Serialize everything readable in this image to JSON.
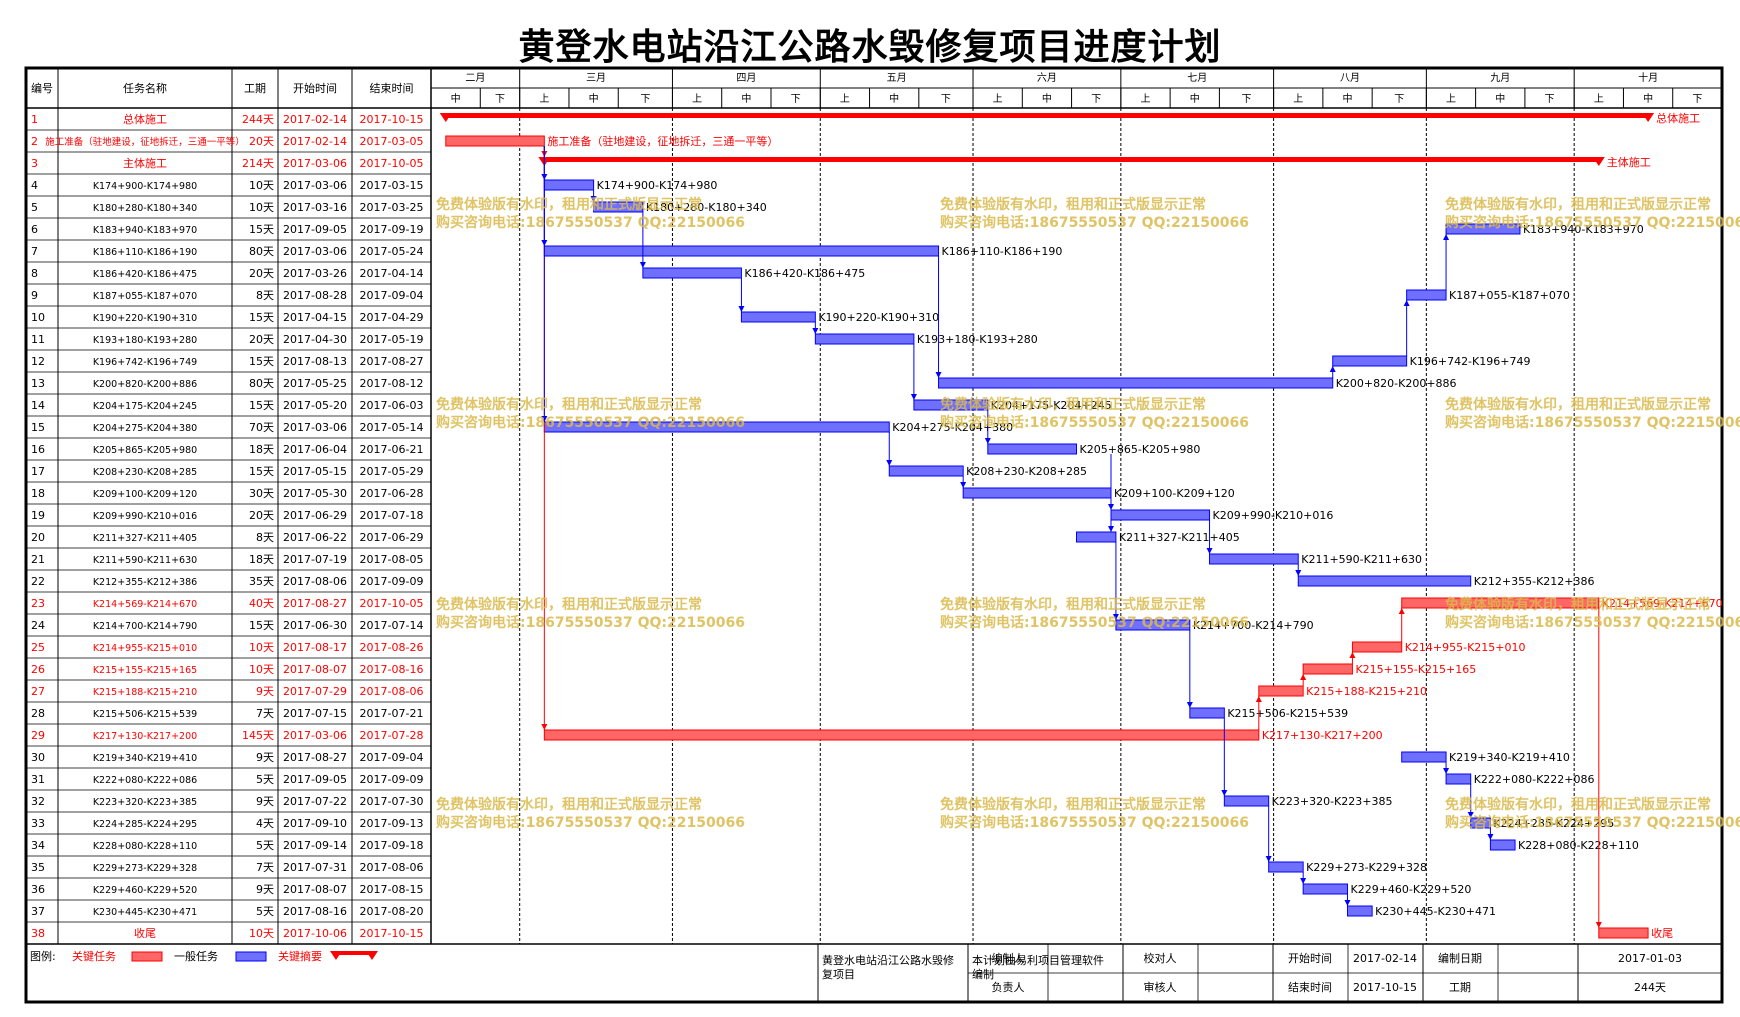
{
  "title": "黄登水电站沿江公路水毁修复项目进度计划",
  "headers": {
    "id": "编号",
    "name": "任务名称",
    "dur": "工期",
    "start": "开始时间",
    "end": "结束时间"
  },
  "months": [
    "二月",
    "三月",
    "四月",
    "五月",
    "六月",
    "七月",
    "八月",
    "九月",
    "十月"
  ],
  "periods": [
    "中",
    "下",
    "上",
    "中",
    "下",
    "上",
    "中",
    "下",
    "上",
    "中",
    "下",
    "上",
    "中",
    "下",
    "上",
    "中",
    "下",
    "上",
    "中",
    "下",
    "上",
    "中",
    "下",
    "上",
    "中",
    "下"
  ],
  "colors": {
    "critical": "#ff0000",
    "normal": "#0000ff",
    "critical_bar": "#ff6666",
    "normal_bar": "#7070ff",
    "watermark": "#d9b84a"
  },
  "watermark": {
    "line1": "免费体验版有水印，租用和正式版显示正常",
    "line2": "购买咨询电话:18675550537 QQ:22150066"
  },
  "chart_data": {
    "type": "gantt",
    "timeline_start": "2017-02-11",
    "timeline_end": "2017-10-31",
    "tasks": [
      {
        "id": "1",
        "name": "总体施工",
        "duration": "244天",
        "start": "2017-02-14",
        "end": "2017-10-15",
        "kind": "summary",
        "critical": true,
        "label": "总体施工"
      },
      {
        "id": "2",
        "name": "施工准备（驻地建设，征地拆迁，三通一平等）",
        "duration": "20天",
        "start": "2017-02-14",
        "end": "2017-03-05",
        "kind": "task",
        "critical": true,
        "label": "施工准备（驻地建设，征地拆迁，三通一平等）"
      },
      {
        "id": "3",
        "name": "主体施工",
        "duration": "214天",
        "start": "2017-03-06",
        "end": "2017-10-05",
        "kind": "summary",
        "critical": true,
        "label": "主体施工"
      },
      {
        "id": "4",
        "name": "K174+900-K174+980",
        "duration": "10天",
        "start": "2017-03-06",
        "end": "2017-03-15",
        "kind": "task",
        "critical": false,
        "label": "K174+900-K174+980"
      },
      {
        "id": "5",
        "name": "K180+280-K180+340",
        "duration": "10天",
        "start": "2017-03-16",
        "end": "2017-03-25",
        "kind": "task",
        "critical": false,
        "label": "K180+280-K180+340"
      },
      {
        "id": "6",
        "name": "K183+940-K183+970",
        "duration": "15天",
        "start": "2017-09-05",
        "end": "2017-09-19",
        "kind": "task",
        "critical": false,
        "label": "K183+940-K183+970"
      },
      {
        "id": "7",
        "name": "K186+110-K186+190",
        "duration": "80天",
        "start": "2017-03-06",
        "end": "2017-05-24",
        "kind": "task",
        "critical": false,
        "label": "K186+110-K186+190"
      },
      {
        "id": "8",
        "name": "K186+420-K186+475",
        "duration": "20天",
        "start": "2017-03-26",
        "end": "2017-04-14",
        "kind": "task",
        "critical": false,
        "label": "K186+420-K186+475"
      },
      {
        "id": "9",
        "name": "K187+055-K187+070",
        "duration": "8天",
        "start": "2017-08-28",
        "end": "2017-09-04",
        "kind": "task",
        "critical": false,
        "label": "K187+055-K187+070"
      },
      {
        "id": "10",
        "name": "K190+220-K190+310",
        "duration": "15天",
        "start": "2017-04-15",
        "end": "2017-04-29",
        "kind": "task",
        "critical": false,
        "label": "K190+220-K190+310"
      },
      {
        "id": "11",
        "name": "K193+180-K193+280",
        "duration": "20天",
        "start": "2017-04-30",
        "end": "2017-05-19",
        "kind": "task",
        "critical": false,
        "label": "K193+180-K193+280"
      },
      {
        "id": "12",
        "name": "K196+742-K196+749",
        "duration": "15天",
        "start": "2017-08-13",
        "end": "2017-08-27",
        "kind": "task",
        "critical": false,
        "label": "K196+742-K196+749"
      },
      {
        "id": "13",
        "name": "K200+820-K200+886",
        "duration": "80天",
        "start": "2017-05-25",
        "end": "2017-08-12",
        "kind": "task",
        "critical": false,
        "label": "K200+820-K200+886"
      },
      {
        "id": "14",
        "name": "K204+175-K204+245",
        "duration": "15天",
        "start": "2017-05-20",
        "end": "2017-06-03",
        "kind": "task",
        "critical": false,
        "label": "K204+175-K204+245"
      },
      {
        "id": "15",
        "name": "K204+275-K204+380",
        "duration": "70天",
        "start": "2017-03-06",
        "end": "2017-05-14",
        "kind": "task",
        "critical": false,
        "label": "K204+275-K204+380"
      },
      {
        "id": "16",
        "name": "K205+865-K205+980",
        "duration": "18天",
        "start": "2017-06-04",
        "end": "2017-06-21",
        "kind": "task",
        "critical": false,
        "label": "K205+865-K205+980"
      },
      {
        "id": "17",
        "name": "K208+230-K208+285",
        "duration": "15天",
        "start": "2017-05-15",
        "end": "2017-05-29",
        "kind": "task",
        "critical": false,
        "label": "K208+230-K208+285"
      },
      {
        "id": "18",
        "name": "K209+100-K209+120",
        "duration": "30天",
        "start": "2017-05-30",
        "end": "2017-06-28",
        "kind": "task",
        "critical": false,
        "label": "K209+100-K209+120"
      },
      {
        "id": "19",
        "name": "K209+990-K210+016",
        "duration": "20天",
        "start": "2017-06-29",
        "end": "2017-07-18",
        "kind": "task",
        "critical": false,
        "label": "K209+990-K210+016"
      },
      {
        "id": "20",
        "name": "K211+327-K211+405",
        "duration": "8天",
        "start": "2017-06-22",
        "end": "2017-06-29",
        "kind": "task",
        "critical": false,
        "label": "K211+327-K211+405"
      },
      {
        "id": "21",
        "name": "K211+590-K211+630",
        "duration": "18天",
        "start": "2017-07-19",
        "end": "2017-08-05",
        "kind": "task",
        "critical": false,
        "label": "K211+590-K211+630"
      },
      {
        "id": "22",
        "name": "K212+355-K212+386",
        "duration": "35天",
        "start": "2017-08-06",
        "end": "2017-09-09",
        "kind": "task",
        "critical": false,
        "label": "K212+355-K212+386"
      },
      {
        "id": "23",
        "name": "K214+569-K214+670",
        "duration": "40天",
        "start": "2017-08-27",
        "end": "2017-10-05",
        "kind": "task",
        "critical": true,
        "label": "K214+569-K214+670"
      },
      {
        "id": "24",
        "name": "K214+700-K214+790",
        "duration": "15天",
        "start": "2017-06-30",
        "end": "2017-07-14",
        "kind": "task",
        "critical": false,
        "label": "K214+700-K214+790"
      },
      {
        "id": "25",
        "name": "K214+955-K215+010",
        "duration": "10天",
        "start": "2017-08-17",
        "end": "2017-08-26",
        "kind": "task",
        "critical": true,
        "label": "K214+955-K215+010"
      },
      {
        "id": "26",
        "name": "K215+155-K215+165",
        "duration": "10天",
        "start": "2017-08-07",
        "end": "2017-08-16",
        "kind": "task",
        "critical": true,
        "label": "K215+155-K215+165"
      },
      {
        "id": "27",
        "name": "K215+188-K215+210",
        "duration": "9天",
        "start": "2017-07-29",
        "end": "2017-08-06",
        "kind": "task",
        "critical": true,
        "label": "K215+188-K215+210"
      },
      {
        "id": "28",
        "name": "K215+506-K215+539",
        "duration": "7天",
        "start": "2017-07-15",
        "end": "2017-07-21",
        "kind": "task",
        "critical": false,
        "label": "K215+506-K215+539"
      },
      {
        "id": "29",
        "name": "K217+130-K217+200",
        "duration": "145天",
        "start": "2017-03-06",
        "end": "2017-07-28",
        "kind": "task",
        "critical": true,
        "label": "K217+130-K217+200"
      },
      {
        "id": "30",
        "name": "K219+340-K219+410",
        "duration": "9天",
        "start": "2017-08-27",
        "end": "2017-09-04",
        "kind": "task",
        "critical": false,
        "label": "K219+340-K219+410"
      },
      {
        "id": "31",
        "name": "K222+080-K222+086",
        "duration": "5天",
        "start": "2017-09-05",
        "end": "2017-09-09",
        "kind": "task",
        "critical": false,
        "label": "K222+080-K222+086"
      },
      {
        "id": "32",
        "name": "K223+320-K223+385",
        "duration": "9天",
        "start": "2017-07-22",
        "end": "2017-07-30",
        "kind": "task",
        "critical": false,
        "label": "K223+320-K223+385"
      },
      {
        "id": "33",
        "name": "K224+285-K224+295",
        "duration": "4天",
        "start": "2017-09-10",
        "end": "2017-09-13",
        "kind": "task",
        "critical": false,
        "label": "K224+285-K224+295"
      },
      {
        "id": "34",
        "name": "K228+080-K228+110",
        "duration": "5天",
        "start": "2017-09-14",
        "end": "2017-09-18",
        "kind": "task",
        "critical": false,
        "label": "K228+080-K228+110"
      },
      {
        "id": "35",
        "name": "K229+273-K229+328",
        "duration": "7天",
        "start": "2017-07-31",
        "end": "2017-08-06",
        "kind": "task",
        "critical": false,
        "label": "K229+273-K229+328"
      },
      {
        "id": "36",
        "name": "K229+460-K229+520",
        "duration": "9天",
        "start": "2017-08-07",
        "end": "2017-08-15",
        "kind": "task",
        "critical": false,
        "label": "K229+460-K229+520"
      },
      {
        "id": "37",
        "name": "K230+445-K230+471",
        "duration": "5天",
        "start": "2017-08-16",
        "end": "2017-08-20",
        "kind": "task",
        "critical": false,
        "label": "K230+445-K230+471"
      },
      {
        "id": "38",
        "name": "收尾",
        "duration": "10天",
        "start": "2017-10-06",
        "end": "2017-10-15",
        "kind": "task",
        "critical": true,
        "label": "收尾"
      }
    ],
    "links": [
      [
        2,
        4
      ],
      [
        4,
        5
      ],
      [
        5,
        8
      ],
      [
        8,
        10
      ],
      [
        10,
        11
      ],
      [
        11,
        14
      ],
      [
        7,
        13
      ],
      [
        13,
        12
      ],
      [
        12,
        9
      ],
      [
        9,
        6
      ],
      [
        15,
        17
      ],
      [
        17,
        18
      ],
      [
        18,
        20
      ],
      [
        14,
        16
      ],
      [
        16,
        19
      ],
      [
        20,
        24
      ],
      [
        24,
        28
      ],
      [
        28,
        32
      ],
      [
        32,
        35
      ],
      [
        35,
        36
      ],
      [
        36,
        37
      ],
      [
        19,
        21
      ],
      [
        21,
        22
      ],
      [
        30,
        31
      ],
      [
        31,
        33
      ],
      [
        33,
        34
      ],
      [
        29,
        27
      ],
      [
        27,
        26
      ],
      [
        26,
        25
      ],
      [
        25,
        23
      ],
      [
        23,
        38
      ],
      [
        2,
        3
      ],
      [
        2,
        29
      ],
      [
        2,
        7
      ],
      [
        2,
        15
      ]
    ]
  },
  "legend": {
    "label": "图例:",
    "critical": "关键任务",
    "normal": "一般任务",
    "summary": "关键摘要"
  },
  "footer": {
    "project": "黄登水电站沿江公路水毁修复项目",
    "note": "本计划由易利项目管理软件编制",
    "editor_label": "编制人",
    "checker_label": "校对人",
    "owner_label": "负责人",
    "reviewer_label": "审核人",
    "start_label": "开始时间",
    "start_value": "2017-02-14",
    "end_label": "结束时间",
    "end_value": "2017-10-15",
    "made_label": "编制日期",
    "made_value": "2017-01-03",
    "dur_label": "工期",
    "dur_value": "244天"
  }
}
